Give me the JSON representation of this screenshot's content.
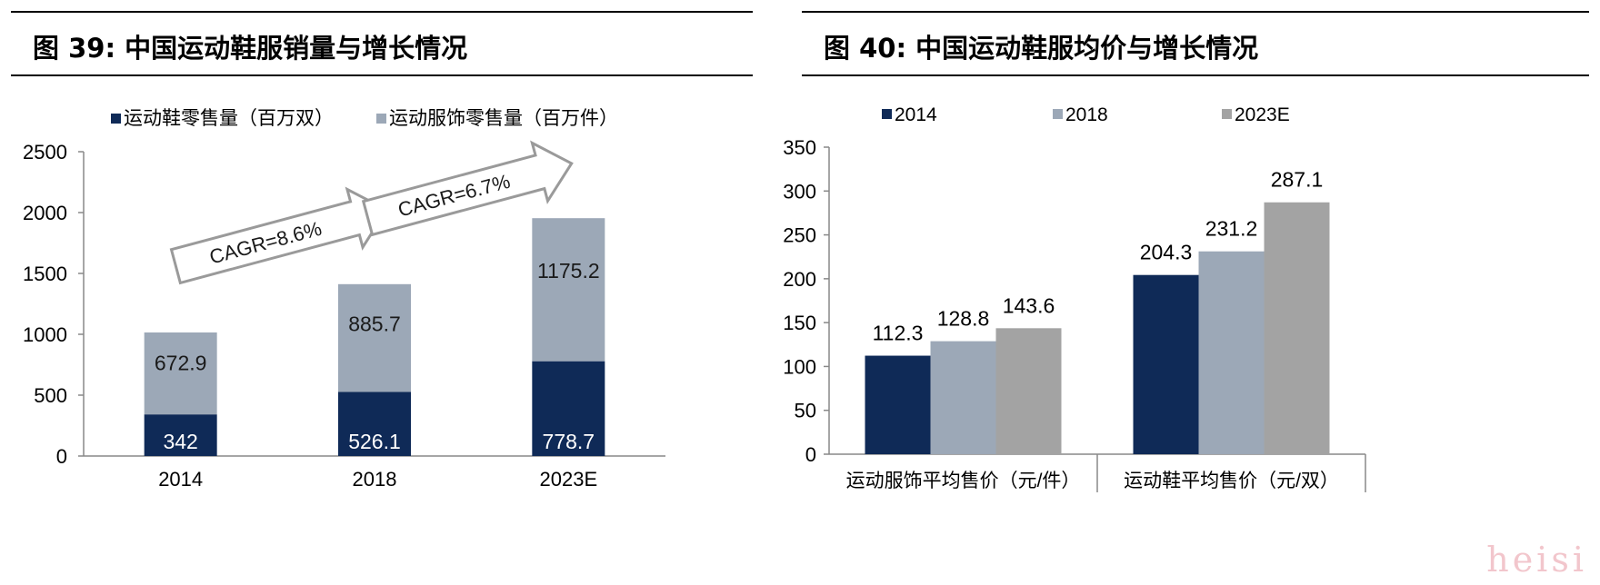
{
  "charts": [
    {
      "title": "图 39:  中国运动鞋服销量与增长情况",
      "chart_data": {
        "type": "bar",
        "stacked": true,
        "categories": [
          "2014",
          "2018",
          "2023E"
        ],
        "series": [
          {
            "name": "运动鞋零售量（百万双）",
            "values": [
              342,
              526.1,
              778.7
            ],
            "color": "#0f2a57",
            "label_color": "#ffffff"
          },
          {
            "name": "运动服饰零售量（百万件）",
            "values": [
              672.9,
              885.7,
              1175.2
            ],
            "color": "#9ca8b7",
            "label_color": "#1a1a1a"
          }
        ],
        "data_labels": [
          [
            "342",
            "526.1",
            "778.7"
          ],
          [
            "672.9",
            "885.7",
            "1175.2"
          ]
        ],
        "ylim": [
          0,
          2500
        ],
        "yticks": [
          0,
          500,
          1000,
          1500,
          2000,
          2500
        ],
        "legend_position": "top",
        "annotations": [
          {
            "text": "CAGR=8.6%",
            "from": "2014",
            "to": "2018"
          },
          {
            "text": "CAGR=6.7%",
            "from": "2018",
            "to": "2023E"
          }
        ]
      }
    },
    {
      "title": "图 40:  中国运动鞋服均价与增长情况",
      "chart_data": {
        "type": "bar",
        "categories": [
          "运动服饰平均售价（元/件）",
          "运动鞋平均售价（元/双）"
        ],
        "series": [
          {
            "name": "2014",
            "values": [
              112.3,
              204.3
            ],
            "color": "#0f2a57"
          },
          {
            "name": "2018",
            "values": [
              128.8,
              231.2
            ],
            "color": "#9ca8b7"
          },
          {
            "name": "2023E",
            "values": [
              143.6,
              287.1
            ],
            "color": "#a3a3a3"
          }
        ],
        "data_labels": [
          [
            "112.3",
            "204.3"
          ],
          [
            "128.8",
            "231.2"
          ],
          [
            "143.6",
            "287.1"
          ]
        ],
        "ylim": [
          0,
          350
        ],
        "yticks": [
          0,
          50,
          100,
          150,
          200,
          250,
          300,
          350
        ],
        "legend_position": "top"
      }
    }
  ],
  "watermark": "heisi"
}
